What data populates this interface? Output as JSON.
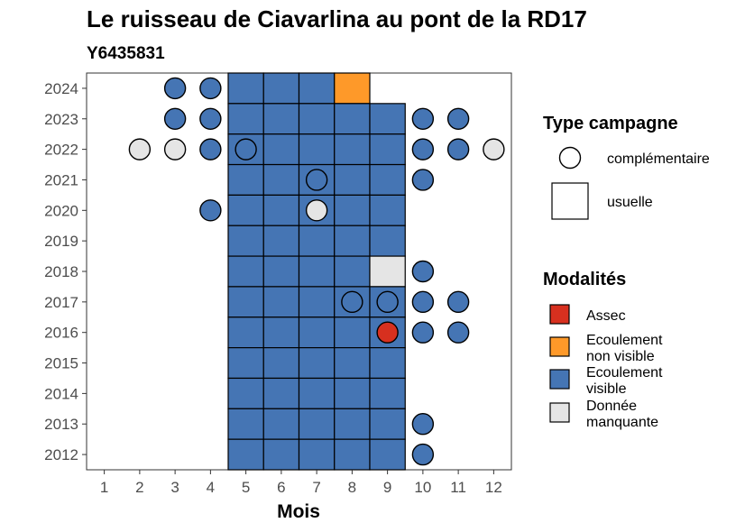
{
  "chart_data": {
    "type": "heatmap",
    "title": "Le ruisseau de Ciavarlina au pont de la RD17",
    "subtitle": "Y6435831",
    "xlabel": "Mois",
    "ylabel": "",
    "x_ticks": [
      1,
      2,
      3,
      4,
      5,
      6,
      7,
      8,
      9,
      10,
      11,
      12
    ],
    "y_ticks": [
      2012,
      2013,
      2014,
      2015,
      2016,
      2017,
      2018,
      2019,
      2020,
      2021,
      2022,
      2023,
      2024
    ],
    "xlim": [
      0.5,
      12.5
    ],
    "ylim": [
      2011.5,
      2024.5
    ],
    "colors": {
      "assec": "#d7301f",
      "ecoulement_non_visible": "#fe9929",
      "ecoulement_visible": "#4575b4",
      "donnee_manquante": "#e5e5e5"
    },
    "legend_type": {
      "title": "Type campagne",
      "items": [
        {
          "label": "complémentaire",
          "shape": "circle"
        },
        {
          "label": "usuelle",
          "shape": "square"
        }
      ]
    },
    "legend_modalites": {
      "title": "Modalités",
      "items": [
        {
          "label_lines": [
            "Assec"
          ],
          "color": "#d7301f"
        },
        {
          "label_lines": [
            "Ecoulement",
            "non visible"
          ],
          "color": "#fe9929"
        },
        {
          "label_lines": [
            "Ecoulement",
            "visible"
          ],
          "color": "#4575b4"
        },
        {
          "label_lines": [
            "Donnée",
            "manquante"
          ],
          "color": "#e5e5e5"
        }
      ]
    },
    "usuelle": [
      {
        "year": 2024,
        "months": [
          5,
          6,
          7
        ],
        "mod": "ecoulement_visible"
      },
      {
        "year": 2024,
        "months": [
          8
        ],
        "mod": "ecoulement_non_visible"
      },
      {
        "year": 2023,
        "months": [
          5,
          6,
          7,
          8,
          9
        ],
        "mod": "ecoulement_visible"
      },
      {
        "year": 2022,
        "months": [
          5,
          6,
          7,
          8,
          9
        ],
        "mod": "ecoulement_visible"
      },
      {
        "year": 2021,
        "months": [
          5,
          6,
          7,
          8,
          9
        ],
        "mod": "ecoulement_visible"
      },
      {
        "year": 2020,
        "months": [
          5,
          6,
          7,
          8,
          9
        ],
        "mod": "ecoulement_visible"
      },
      {
        "year": 2019,
        "months": [
          5,
          6,
          7,
          8,
          9
        ],
        "mod": "ecoulement_visible"
      },
      {
        "year": 2018,
        "months": [
          5,
          6,
          7,
          8
        ],
        "mod": "ecoulement_visible"
      },
      {
        "year": 2018,
        "months": [
          9
        ],
        "mod": "donnee_manquante"
      },
      {
        "year": 2017,
        "months": [
          5,
          6,
          7,
          8,
          9
        ],
        "mod": "ecoulement_visible"
      },
      {
        "year": 2016,
        "months": [
          5,
          6,
          7,
          8,
          9
        ],
        "mod": "ecoulement_visible"
      },
      {
        "year": 2015,
        "months": [
          5,
          6,
          7,
          8,
          9
        ],
        "mod": "ecoulement_visible"
      },
      {
        "year": 2014,
        "months": [
          5,
          6,
          7,
          8,
          9
        ],
        "mod": "ecoulement_visible"
      },
      {
        "year": 2013,
        "months": [
          5,
          6,
          7,
          8,
          9
        ],
        "mod": "ecoulement_visible"
      },
      {
        "year": 2012,
        "months": [
          5,
          6,
          7,
          8,
          9
        ],
        "mod": "ecoulement_visible"
      }
    ],
    "complementaire": [
      {
        "year": 2024,
        "month": 3,
        "mod": "ecoulement_visible"
      },
      {
        "year": 2024,
        "month": 4,
        "mod": "ecoulement_visible"
      },
      {
        "year": 2023,
        "month": 3,
        "mod": "ecoulement_visible"
      },
      {
        "year": 2023,
        "month": 4,
        "mod": "ecoulement_visible"
      },
      {
        "year": 2023,
        "month": 10,
        "mod": "ecoulement_visible"
      },
      {
        "year": 2023,
        "month": 11,
        "mod": "ecoulement_visible"
      },
      {
        "year": 2022,
        "month": 2,
        "mod": "donnee_manquante"
      },
      {
        "year": 2022,
        "month": 3,
        "mod": "donnee_manquante"
      },
      {
        "year": 2022,
        "month": 4,
        "mod": "ecoulement_visible"
      },
      {
        "year": 2022,
        "month": 5,
        "mod": "ecoulement_visible"
      },
      {
        "year": 2022,
        "month": 10,
        "mod": "ecoulement_visible"
      },
      {
        "year": 2022,
        "month": 11,
        "mod": "ecoulement_visible"
      },
      {
        "year": 2022,
        "month": 12,
        "mod": "donnee_manquante"
      },
      {
        "year": 2021,
        "month": 7,
        "mod": "ecoulement_visible"
      },
      {
        "year": 2021,
        "month": 10,
        "mod": "ecoulement_visible"
      },
      {
        "year": 2020,
        "month": 4,
        "mod": "ecoulement_visible"
      },
      {
        "year": 2020,
        "month": 7,
        "mod": "donnee_manquante"
      },
      {
        "year": 2018,
        "month": 10,
        "mod": "ecoulement_visible"
      },
      {
        "year": 2017,
        "month": 8,
        "mod": "ecoulement_visible"
      },
      {
        "year": 2017,
        "month": 9,
        "mod": "ecoulement_visible"
      },
      {
        "year": 2017,
        "month": 10,
        "mod": "ecoulement_visible"
      },
      {
        "year": 2017,
        "month": 11,
        "mod": "ecoulement_visible"
      },
      {
        "year": 2016,
        "month": 9,
        "mod": "assec"
      },
      {
        "year": 2016,
        "month": 10,
        "mod": "ecoulement_visible"
      },
      {
        "year": 2016,
        "month": 11,
        "mod": "ecoulement_visible"
      },
      {
        "year": 2013,
        "month": 10,
        "mod": "ecoulement_visible"
      },
      {
        "year": 2012,
        "month": 10,
        "mod": "ecoulement_visible"
      }
    ]
  }
}
